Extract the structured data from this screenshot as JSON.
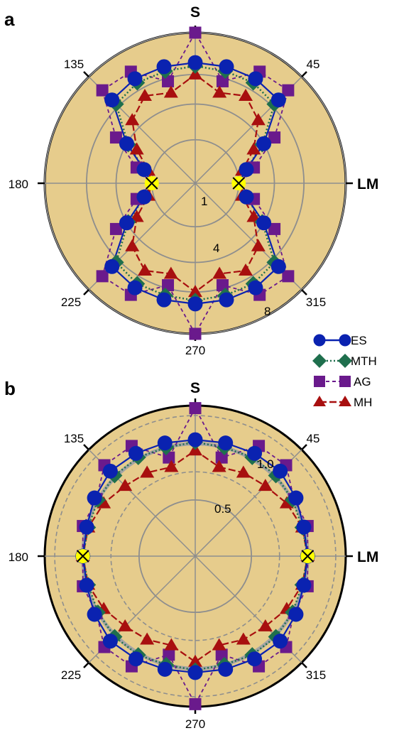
{
  "colors": {
    "background": "#e6cc8c",
    "ES": "#0a22b0",
    "MTH": "#1f6f4d",
    "AG": "#6a1a8c",
    "MH": "#a80f0f",
    "crossing_marker": "#ffff00",
    "grid": "#8e8e8e"
  },
  "legend": [
    {
      "key": "ES",
      "label": "ES",
      "marker": "circle",
      "line": "solid"
    },
    {
      "key": "MTH",
      "label": "MTH",
      "marker": "diamond",
      "line": "dotted"
    },
    {
      "key": "AG",
      "label": "AG",
      "marker": "square",
      "line": "dashed"
    },
    {
      "key": "MH",
      "label": "MH",
      "marker": "triangle",
      "line": "longdash"
    }
  ],
  "chart_data": [
    {
      "type": "polar-line",
      "panel_label": "a",
      "angle_labels": {
        "0": "LM",
        "45": "45",
        "90": "S",
        "135": "135",
        "180": "180",
        "225": "225",
        "270": "270",
        "315": "315"
      },
      "radial_scale": "sqrt",
      "radial_range": [
        0,
        16
      ],
      "rings": [
        1,
        4,
        8,
        16
      ],
      "ring_labels": [
        "1",
        "4",
        "8"
      ],
      "angles_deg": [
        0,
        15,
        30,
        45,
        60,
        75,
        90,
        105,
        120,
        135,
        150,
        165,
        180,
        195,
        210,
        225,
        240,
        255,
        270,
        285,
        300,
        315,
        330,
        345
      ],
      "series": [
        {
          "name": "ES",
          "values": [
            1.0,
            1.6,
            4.0,
            9.5,
            10.0,
            10.0,
            10.0,
            10.0,
            10.0,
            9.5,
            4.0,
            1.6,
            1.0,
            1.6,
            4.0,
            9.5,
            10.0,
            10.0,
            10.0,
            10.0,
            10.0,
            9.5,
            4.0,
            1.6
          ]
        },
        {
          "name": "MTH",
          "values": [
            1.0,
            1.6,
            3.8,
            8.5,
            9.2,
            9.2,
            9.4,
            9.2,
            9.2,
            8.5,
            3.8,
            1.6,
            1.0,
            1.6,
            3.8,
            8.5,
            9.2,
            9.2,
            9.4,
            9.2,
            9.2,
            8.5,
            3.8,
            1.6
          ]
        },
        {
          "name": "AG",
          "values": [
            1.0,
            2.2,
            5.5,
            12.0,
            11.5,
            7.5,
            16.0,
            7.5,
            11.5,
            12.0,
            5.5,
            2.2,
            1.0,
            2.2,
            5.5,
            12.0,
            11.5,
            7.5,
            16.0,
            7.5,
            11.5,
            12.0,
            5.5,
            2.2
          ]
        },
        {
          "name": "MH",
          "values": [
            1.0,
            1.3,
            2.8,
            5.2,
            6.8,
            5.8,
            8.0,
            5.8,
            6.8,
            5.2,
            2.8,
            1.3,
            1.0,
            1.3,
            2.8,
            5.2,
            6.8,
            5.8,
            8.0,
            5.8,
            6.8,
            5.2,
            2.8,
            1.3
          ]
        }
      ],
      "crossings": [
        {
          "angle": 0,
          "r": 1.0
        },
        {
          "angle": 180,
          "r": 1.0
        }
      ]
    },
    {
      "type": "polar-line",
      "panel_label": "b",
      "angle_labels": {
        "0": "LM",
        "45": "45",
        "90": "S",
        "135": "135",
        "180": "180",
        "225": "225",
        "270": "270",
        "315": "315"
      },
      "radial_scale": "log",
      "radial_range": [
        0.25,
        1.6
      ],
      "solid_rings": [
        0.5,
        1.0
      ],
      "dashed_rings": [
        0.7071,
        1.4142
      ],
      "thick_ring": 1.0,
      "ring_labels": [
        "0.5",
        "1.0"
      ],
      "angles_deg": [
        0,
        15,
        30,
        45,
        60,
        75,
        90,
        105,
        120,
        135,
        150,
        165,
        180,
        195,
        210,
        225,
        240,
        255,
        270,
        285,
        300,
        315,
        330,
        345
      ],
      "series": [
        {
          "name": "ES",
          "values": [
            1.0,
            1.0,
            1.05,
            1.1,
            1.08,
            1.06,
            1.05,
            1.06,
            1.08,
            1.1,
            1.05,
            1.0,
            1.0,
            1.0,
            1.05,
            1.1,
            1.08,
            1.06,
            1.05,
            1.06,
            1.08,
            1.1,
            1.05,
            1.0
          ]
        },
        {
          "name": "MTH",
          "values": [
            1.0,
            0.98,
            1.0,
            1.02,
            1.02,
            1.0,
            1.02,
            1.0,
            1.02,
            1.02,
            1.0,
            0.98,
            1.0,
            0.98,
            1.0,
            1.02,
            1.02,
            1.0,
            1.02,
            1.0,
            1.02,
            1.02,
            1.0,
            0.98
          ]
        },
        {
          "name": "AG",
          "values": [
            1.0,
            1.05,
            1.02,
            1.22,
            1.2,
            0.88,
            1.55,
            0.88,
            1.2,
            1.22,
            1.02,
            1.05,
            1.0,
            1.05,
            1.02,
            1.22,
            1.2,
            0.88,
            1.55,
            0.88,
            1.2,
            1.22,
            1.02,
            1.05
          ]
        },
        {
          "name": "MH",
          "values": [
            1.0,
            0.98,
            0.92,
            0.85,
            0.82,
            0.78,
            0.92,
            0.78,
            0.82,
            0.85,
            0.92,
            0.98,
            1.0,
            0.98,
            0.92,
            0.85,
            0.82,
            0.78,
            0.92,
            0.78,
            0.82,
            0.85,
            0.92,
            0.98
          ]
        }
      ],
      "crossings": [
        {
          "angle": 0,
          "r": 1.0
        },
        {
          "angle": 180,
          "r": 1.0
        }
      ]
    }
  ]
}
